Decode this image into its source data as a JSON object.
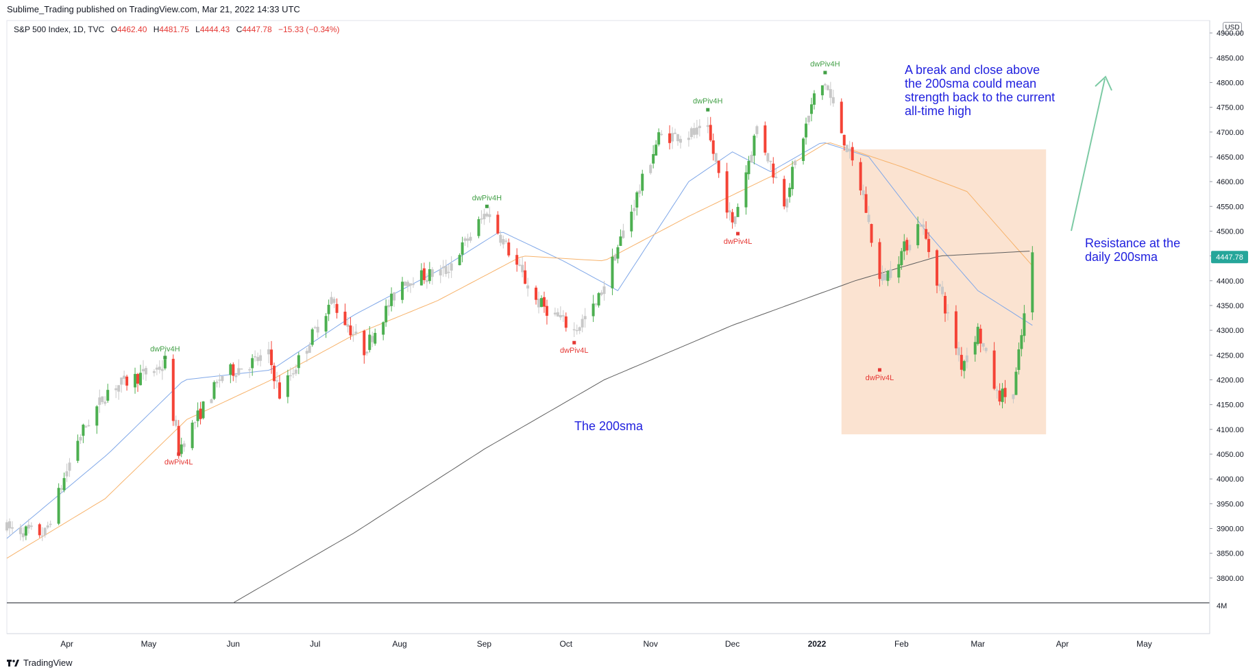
{
  "header": {
    "publisher": "Sublime_Trading published on TradingView.com, Mar 21, 2022 14:33 UTC"
  },
  "legend": {
    "symbol": "S&P 500 Index, 1D, TVC",
    "o_label": "O",
    "o": "4462.40",
    "h_label": "H",
    "h": "4481.75",
    "l_label": "L",
    "l": "4444.43",
    "c_label": "C",
    "c": "4447.78",
    "change": "−15.33 (−0.34%)"
  },
  "axis": {
    "currency": "USD",
    "volume_label": "4M",
    "last_price": "4447.78"
  },
  "footer": {
    "brand": "TradingView"
  },
  "annotations": {
    "break_text": [
      "A break and close above",
      "the 200sma could mean",
      "strength back to the current",
      "all-time high"
    ],
    "resistance_text": [
      "Resistance at the",
      "daily 200sma"
    ],
    "sma_text": "The 200sma"
  },
  "colors": {
    "up": "#4caf50",
    "down": "#f44336",
    "neutral": "#c8c8c8",
    "sma20": "#7fa7e8",
    "sma50": "#f7b26a",
    "sma200": "#5d5d5d",
    "annotation": "#1f1fde",
    "box": "#fbe3d1",
    "arrow": "#7ccaa4"
  },
  "chart_data": {
    "type": "candlestick",
    "title": "S&P 500 Index, 1D, TVC",
    "ylim": [
      3750,
      4925
    ],
    "y_ticks": [
      3800,
      3850,
      3900,
      3950,
      4000,
      4050,
      4100,
      4150,
      4200,
      4250,
      4300,
      4350,
      4400,
      4450,
      4500,
      4550,
      4600,
      4650,
      4700,
      4750,
      4800,
      4850,
      4900
    ],
    "x_ticks": [
      "Apr",
      "May",
      "Jun",
      "Jul",
      "Aug",
      "Sep",
      "Oct",
      "Nov",
      "Dec",
      "2022",
      "Feb",
      "Mar",
      "Apr",
      "May"
    ],
    "x_tick_dates": [
      "2021-04-01",
      "2021-05-01",
      "2021-06-01",
      "2021-07-01",
      "2021-08-01",
      "2021-09-01",
      "2021-10-01",
      "2021-11-01",
      "2021-12-01",
      "2022-01-01",
      "2022-02-01",
      "2022-03-01",
      "2022-04-01",
      "2022-05-01"
    ],
    "x_range": [
      "2021-03-10",
      "2022-05-25"
    ],
    "series": [
      {
        "name": "price",
        "points": [
          [
            "2021-03-10",
            3900
          ],
          [
            "2021-03-24",
            3890
          ],
          [
            "2021-04-05",
            4080
          ],
          [
            "2021-04-16",
            4180
          ],
          [
            "2021-05-07",
            4230
          ],
          [
            "2021-05-12",
            4060
          ],
          [
            "2021-05-28",
            4210
          ],
          [
            "2021-06-14",
            4250
          ],
          [
            "2021-06-18",
            4170
          ],
          [
            "2021-07-07",
            4360
          ],
          [
            "2021-07-19",
            4260
          ],
          [
            "2021-08-02",
            4400
          ],
          [
            "2021-08-18",
            4420
          ],
          [
            "2021-09-02",
            4540
          ],
          [
            "2021-09-20",
            4360
          ],
          [
            "2021-10-04",
            4300
          ],
          [
            "2021-10-12",
            4350
          ],
          [
            "2021-11-04",
            4690
          ],
          [
            "2021-11-22",
            4700
          ],
          [
            "2021-12-01",
            4510
          ],
          [
            "2021-12-10",
            4710
          ],
          [
            "2021-12-20",
            4560
          ],
          [
            "2021-12-31",
            4770
          ],
          [
            "2022-01-04",
            4800
          ],
          [
            "2022-01-18",
            4570
          ],
          [
            "2022-01-24",
            4400
          ],
          [
            "2022-01-28",
            4420
          ],
          [
            "2022-02-08",
            4520
          ],
          [
            "2022-02-23",
            4230
          ],
          [
            "2022-03-01",
            4300
          ],
          [
            "2022-03-08",
            4170
          ],
          [
            "2022-03-14",
            4170
          ],
          [
            "2022-03-21",
            4447.78
          ]
        ]
      },
      {
        "name": "sma20",
        "points": [
          [
            "2021-03-10",
            3880
          ],
          [
            "2021-04-16",
            4050
          ],
          [
            "2021-05-14",
            4200
          ],
          [
            "2021-06-15",
            4220
          ],
          [
            "2021-07-15",
            4330
          ],
          [
            "2021-08-15",
            4420
          ],
          [
            "2021-09-07",
            4500
          ],
          [
            "2021-09-30",
            4440
          ],
          [
            "2021-10-20",
            4380
          ],
          [
            "2021-11-15",
            4600
          ],
          [
            "2021-12-01",
            4660
          ],
          [
            "2021-12-15",
            4620
          ],
          [
            "2022-01-03",
            4680
          ],
          [
            "2022-01-20",
            4650
          ],
          [
            "2022-02-10",
            4500
          ],
          [
            "2022-03-01",
            4380
          ],
          [
            "2022-03-21",
            4310
          ]
        ]
      },
      {
        "name": "sma50",
        "points": [
          [
            "2021-03-10",
            3840
          ],
          [
            "2021-04-15",
            3960
          ],
          [
            "2021-05-15",
            4120
          ],
          [
            "2021-06-15",
            4200
          ],
          [
            "2021-07-15",
            4290
          ],
          [
            "2021-08-15",
            4360
          ],
          [
            "2021-09-15",
            4450
          ],
          [
            "2021-10-15",
            4440
          ],
          [
            "2021-11-15",
            4530
          ],
          [
            "2021-12-15",
            4610
          ],
          [
            "2022-01-05",
            4680
          ],
          [
            "2022-02-01",
            4630
          ],
          [
            "2022-02-25",
            4580
          ],
          [
            "2022-03-21",
            4430
          ]
        ]
      },
      {
        "name": "sma200",
        "points": [
          [
            "2021-06-01",
            3750
          ],
          [
            "2021-07-15",
            3890
          ],
          [
            "2021-09-01",
            4060
          ],
          [
            "2021-10-15",
            4200
          ],
          [
            "2021-12-01",
            4310
          ],
          [
            "2022-01-15",
            4400
          ],
          [
            "2022-02-15",
            4450
          ],
          [
            "2022-03-21",
            4460
          ]
        ]
      }
    ],
    "pivots": [
      {
        "label": "dwPiv4H",
        "date": "2021-05-07",
        "value": 4245
      },
      {
        "label": "dwPiv4L",
        "date": "2021-05-12",
        "value": 4050
      },
      {
        "label": "dwPiv4H",
        "date": "2021-09-02",
        "value": 4550
      },
      {
        "label": "dwPiv4L",
        "date": "2021-10-04",
        "value": 4275
      },
      {
        "label": "dwPiv4H",
        "date": "2021-11-22",
        "value": 4745
      },
      {
        "label": "dwPiv4L",
        "date": "2021-12-03",
        "value": 4495
      },
      {
        "label": "dwPiv4H",
        "date": "2022-01-04",
        "value": 4820
      },
      {
        "label": "dwPiv4L",
        "date": "2022-01-24",
        "value": 4220
      }
    ]
  }
}
